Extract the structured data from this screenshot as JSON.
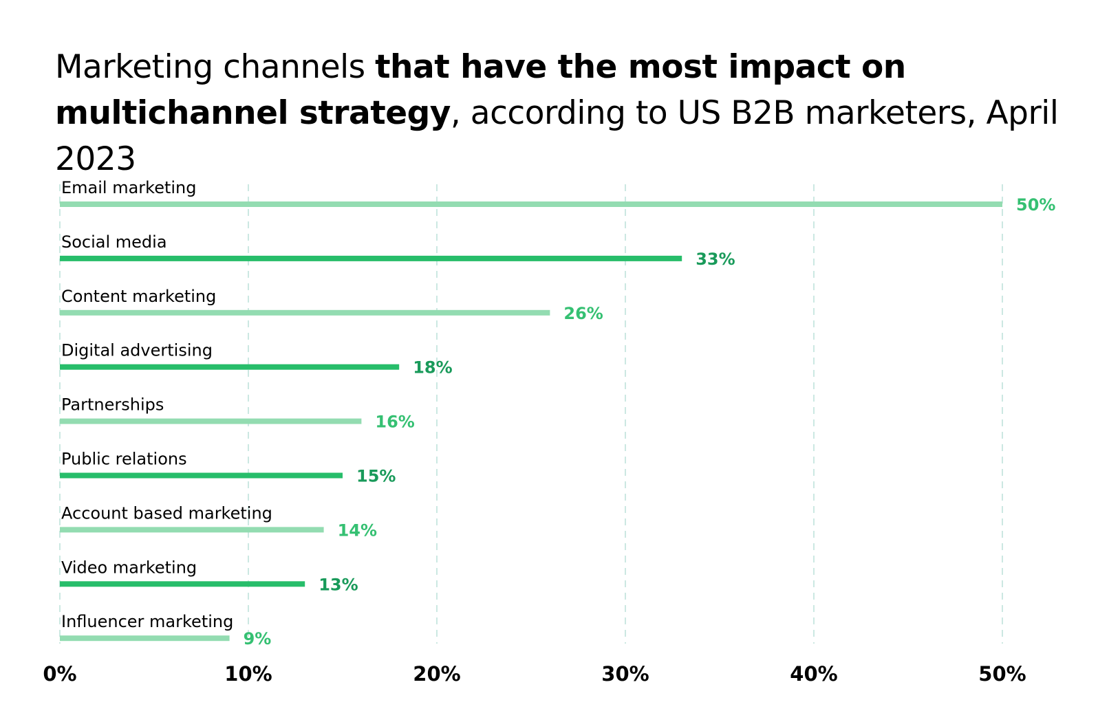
{
  "title": {
    "part1": "Marketing channels ",
    "part2_bold": "that have the most impact on multichannel strategy",
    "part3": ", according to US B2B marketers, April 2023"
  },
  "colors": {
    "bar_light": "#93dcb1",
    "bar_dark": "#27bd6a",
    "label_light": "#35c072",
    "label_dark": "#199a5a",
    "grid": "#a9d9cf"
  },
  "chart_data": {
    "type": "bar",
    "orientation": "horizontal",
    "title": "Marketing channels that have the most impact on multichannel strategy, according to US B2B marketers, April 2023",
    "categories": [
      "Email marketing",
      "Social media",
      "Content marketing",
      "Digital advertising",
      "Partnerships",
      "Public relations",
      "Account based marketing",
      "Video marketing",
      "Influencer marketing"
    ],
    "values": [
      50,
      33,
      26,
      18,
      16,
      15,
      14,
      13,
      9
    ],
    "value_labels": [
      "50%",
      "33%",
      "26%",
      "18%",
      "16%",
      "15%",
      "14%",
      "13%",
      "9%"
    ],
    "xlabel": "",
    "ylabel": "",
    "xlim": [
      0,
      50
    ],
    "xticks": [
      0,
      10,
      20,
      30,
      40,
      50
    ],
    "xtick_labels": [
      "0%",
      "10%",
      "20%",
      "30%",
      "40%",
      "50%"
    ],
    "grid": "vertical dashed",
    "legend": "none"
  }
}
